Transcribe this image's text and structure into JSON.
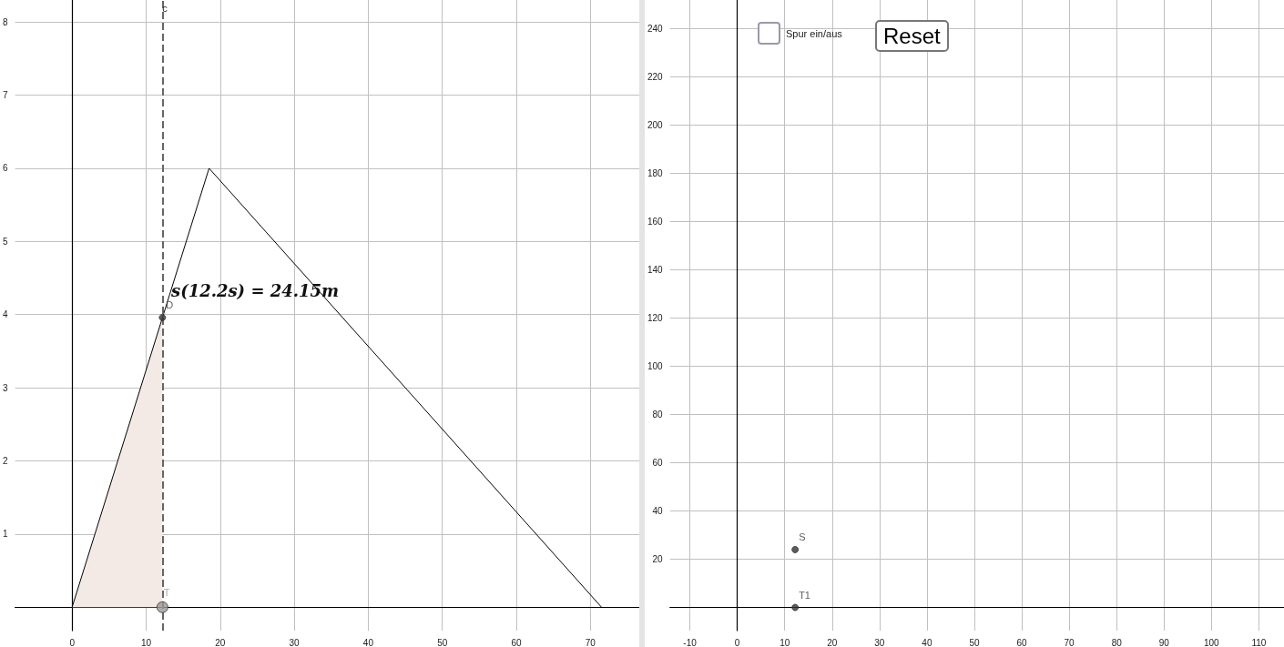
{
  "chart_data": [
    {
      "type": "line",
      "xlim": [
        -7.7,
        76.6
      ],
      "ylim": [
        -0.32,
        8.3
      ],
      "xticks": [
        0,
        10,
        20,
        30,
        40,
        50,
        60,
        70
      ],
      "yticks": [
        1,
        2,
        3,
        4,
        5,
        6,
        7,
        8
      ],
      "grid": true,
      "legend": false,
      "series": [
        {
          "color": "#000000",
          "x": [
            0,
            18.5,
            71.5
          ],
          "values": [
            0,
            6,
            0
          ]
        },
        {
          "type": "area",
          "color": "#f4eae5",
          "x": [
            0,
            12.2
          ],
          "values": [
            0,
            3.96
          ]
        },
        {
          "type": "scatter",
          "name": "D",
          "color": "#333333",
          "x": [
            12.2
          ],
          "values": [
            3.96
          ]
        },
        {
          "type": "scatter",
          "name": "T",
          "color": "#999999",
          "x": [
            12.2
          ],
          "values": [
            0
          ]
        }
      ],
      "ref_lines": [
        {
          "axis": "x",
          "value": 12.2,
          "label": "c",
          "line_style": "dashed",
          "color": "#666666"
        }
      ],
      "annotations": [
        "s(12.2s) = 24.15m"
      ]
    },
    {
      "type": "scatter",
      "xlim": [
        -14.2,
        115.3
      ],
      "ylim": [
        -9.6,
        251.8
      ],
      "xticks": [
        -10,
        0,
        10,
        20,
        30,
        40,
        50,
        60,
        70,
        80,
        90,
        100,
        110
      ],
      "yticks": [
        20,
        40,
        60,
        80,
        100,
        120,
        140,
        160,
        180,
        200,
        220,
        240
      ],
      "grid": true,
      "legend": false,
      "marker": "circle",
      "series": [
        {
          "name": "S",
          "color": "#333333",
          "x": [
            12.2
          ],
          "values": [
            24
          ]
        },
        {
          "name": "T1",
          "color": "#333333",
          "x": [
            12.2
          ],
          "values": [
            0
          ]
        }
      ],
      "annotations": [
        "Spur ein/aus",
        "Reset"
      ]
    }
  ]
}
